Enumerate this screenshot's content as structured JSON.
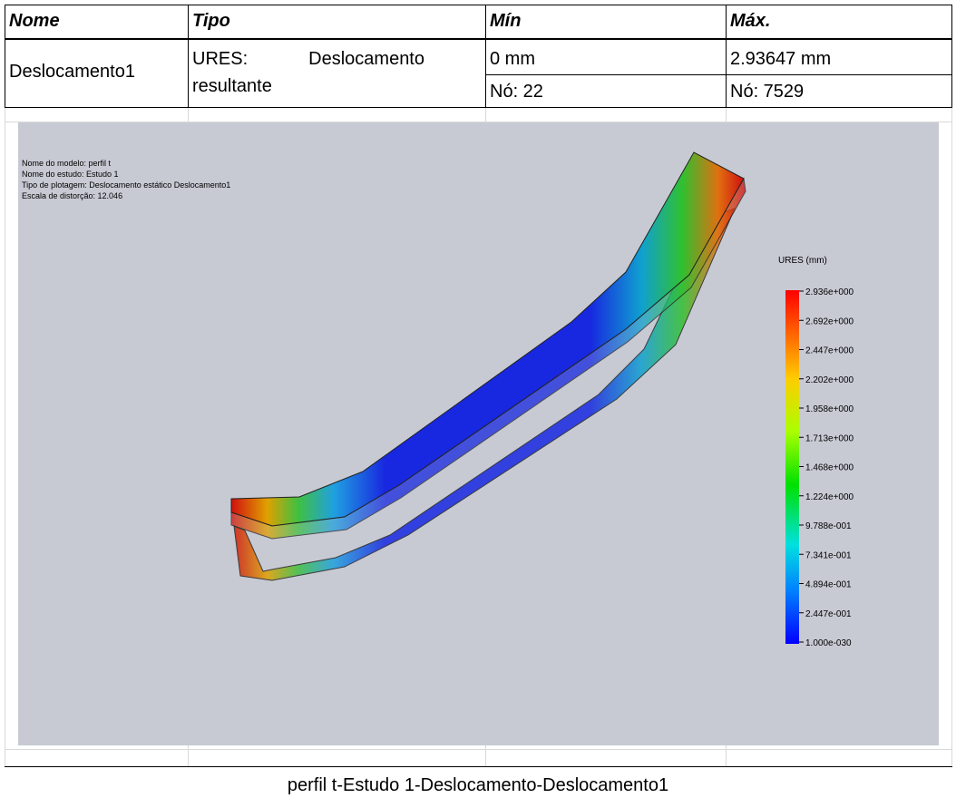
{
  "table": {
    "headers": [
      "Nome",
      "Tipo",
      "Mín",
      "Máx."
    ],
    "result": {
      "name": "Deslocamento1",
      "type": "URES: Deslocamento resultante",
      "min": "0 mm",
      "max": "2.93647 mm",
      "min_node": "Nó: 22",
      "max_node": "Nó: 7529"
    }
  },
  "plot": {
    "info": [
      "Nome do modelo: perfil t",
      "Nome do estudo: Estudo 1",
      "Tipo de plotagem: Deslocamento estático Deslocamento1",
      "Escala de distorção: 12.046"
    ],
    "legend": {
      "title": "URES (mm)",
      "labels": [
        "2.936e+000",
        "2.692e+000",
        "2.447e+000",
        "2.202e+000",
        "1.958e+000",
        "1.713e+000",
        "1.468e+000",
        "1.224e+000",
        "9.788e-001",
        "7.341e-001",
        "4.894e-001",
        "2.447e-001",
        "1.000e-030"
      ]
    }
  },
  "caption": "perfil t-Estudo 1-Deslocamento-Deslocamento1"
}
